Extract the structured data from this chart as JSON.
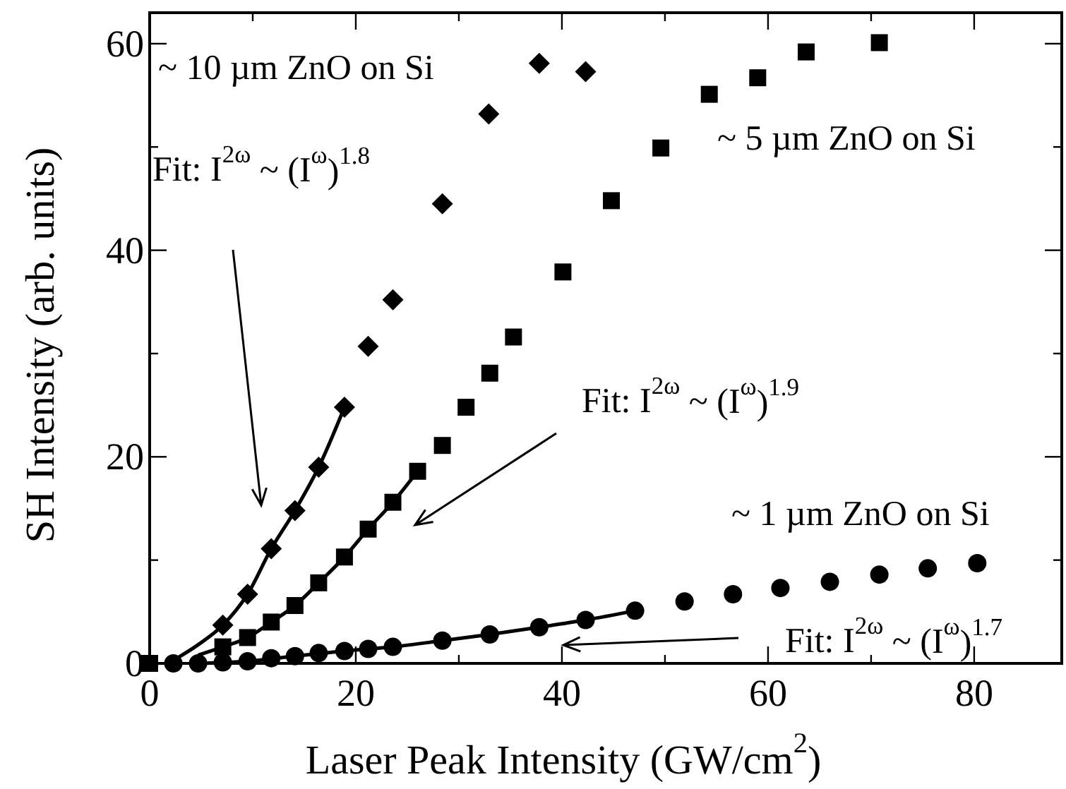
{
  "chart_data": {
    "type": "scatter",
    "xlabel": "Laser Peak Intensity (GW/cm$^{2}$)",
    "ylabel": "SH Intensity (arb. units)",
    "xlim": [
      0,
      88.5
    ],
    "ylim": [
      0,
      63
    ],
    "xticks": [
      0,
      {
        "value": 10,
        "label": null
      },
      20,
      {
        "value": 30,
        "label": null
      },
      40,
      {
        "value": 50,
        "label": null
      },
      60,
      {
        "value": 70,
        "label": null
      },
      80
    ],
    "yticks": [
      0,
      {
        "value": 10,
        "label": null
      },
      20,
      {
        "value": 30,
        "label": null
      },
      40,
      {
        "value": 50,
        "label": null
      },
      60
    ],
    "grid": false,
    "series": [
      {
        "name": "~ 10 µm ZnO on Si",
        "marker": "diamond",
        "color": "#000000",
        "x": [
          7.1,
          9.5,
          11.8,
          14.1,
          16.4,
          18.9,
          21.2,
          23.6,
          28.4,
          32.9,
          37.8,
          42.3
        ],
        "values": [
          3.7,
          6.7,
          11.1,
          14.8,
          19.0,
          24.8,
          30.7,
          35.2,
          44.5,
          53.2,
          58.1,
          57.3
        ]
      },
      {
        "name": "~ 5 µm ZnO on Si",
        "marker": "square",
        "color": "#000000",
        "x": [
          0,
          7.1,
          9.5,
          11.8,
          14.1,
          16.4,
          18.9,
          21.2,
          23.6,
          26.0,
          28.4,
          30.7,
          33.0,
          35.3,
          40.1,
          44.8,
          49.6,
          54.3,
          59.0,
          63.7,
          70.8
        ],
        "values": [
          0,
          1.6,
          2.5,
          4.0,
          5.6,
          7.8,
          10.3,
          13.0,
          15.6,
          18.6,
          21.1,
          24.8,
          28.1,
          31.6,
          37.9,
          44.8,
          49.9,
          55.1,
          56.7,
          59.2,
          60.1
        ]
      },
      {
        "name": "~ 1 µm ZnO on Si",
        "marker": "circle",
        "color": "#000000",
        "x": [
          2.3,
          4.7,
          7.1,
          9.5,
          11.8,
          14.1,
          16.4,
          18.9,
          21.2,
          23.6,
          28.4,
          33.0,
          37.8,
          42.3,
          47.1,
          51.9,
          56.6,
          61.2,
          66.0,
          70.8,
          75.5,
          80.3
        ],
        "values": [
          0,
          0,
          0.1,
          0.2,
          0.5,
          0.7,
          1.0,
          1.2,
          1.4,
          1.6,
          2.2,
          2.8,
          3.5,
          4.2,
          5.1,
          6.0,
          6.7,
          7.3,
          7.9,
          8.6,
          9.2,
          9.7
        ]
      },
      {
        "type": "line",
        "marker": "none",
        "line_style": "solid",
        "color": "#000000",
        "x": [
          2.3,
          4.7,
          7.1,
          9.5,
          11.8,
          14.1,
          16.4,
          18.9
        ],
        "values": [
          0.3,
          1.8,
          3.7,
          6.7,
          11.1,
          14.8,
          19.0,
          24.8
        ]
      },
      {
        "type": "line",
        "marker": "none",
        "line_style": "solid",
        "color": "#000000",
        "x": [
          4.7,
          7.1,
          9.5,
          11.8,
          14.1,
          16.4,
          18.9,
          21.2,
          23.6,
          26.0
        ],
        "values": [
          0.8,
          1.6,
          2.5,
          4.0,
          5.6,
          7.8,
          10.3,
          13.0,
          15.6,
          18.6
        ]
      },
      {
        "type": "line",
        "marker": "none",
        "line_style": "solid",
        "color": "#000000",
        "x": [
          4.7,
          9.5,
          14.1,
          18.9,
          23.6,
          28.4,
          33.0,
          37.8,
          42.3,
          47.1
        ],
        "values": [
          0,
          0.2,
          0.7,
          1.2,
          1.6,
          2.2,
          2.8,
          3.5,
          4.2,
          5.1
        ]
      }
    ],
    "annotations": [
      "Fit: I$^{2ω}$ ~ (I$^{ω}$)$^{1.8}$",
      "Fit: I$^{2ω}$ ~ (I$^{ω}$)$^{1.9}$",
      "Fit: I$^{2ω}$ ~ (I$^{ω}$)$^{1.7}$"
    ]
  }
}
